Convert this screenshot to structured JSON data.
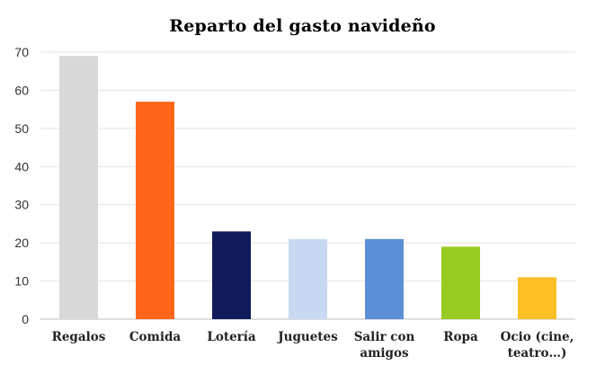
{
  "chart_data": {
    "type": "bar",
    "title": "Reparto del gasto navideño",
    "xlabel": "",
    "ylabel": "",
    "ylim": [
      0,
      70
    ],
    "yticks": [
      0,
      10,
      20,
      30,
      40,
      50,
      60,
      70
    ],
    "grid": true,
    "categories": [
      [
        "Regalos"
      ],
      [
        "Comida"
      ],
      [
        "Lotería"
      ],
      [
        "Juguetes"
      ],
      [
        "Salir con",
        "amigos"
      ],
      [
        "Ropa"
      ],
      [
        "Ocio (cine,",
        "teatro…)"
      ]
    ],
    "values": [
      69,
      57,
      23,
      21,
      21,
      19,
      11
    ],
    "colors": [
      "#d9d9d9",
      "#ff661a",
      "#111b5c",
      "#c9d9f1",
      "#5b8fd8",
      "#99cc22",
      "#fcbf26"
    ]
  }
}
